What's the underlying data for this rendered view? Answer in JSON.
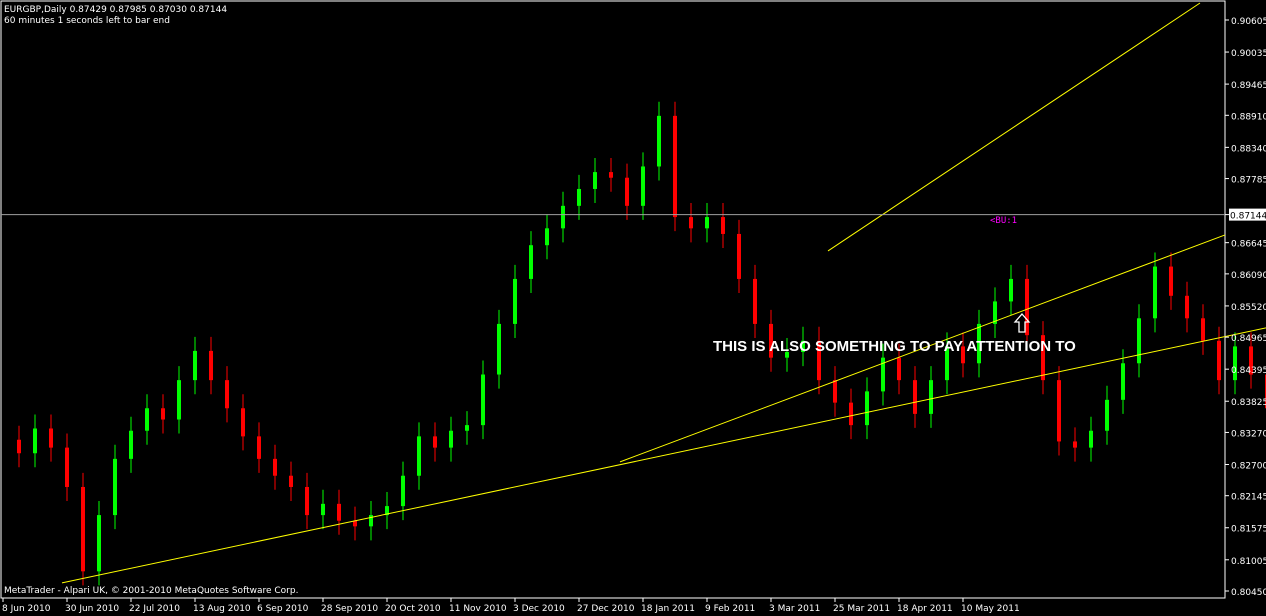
{
  "header": {
    "symbol_line": "EURGBP,Daily  0.87429 0.87985 0.87030 0.87144",
    "timer_line": "60 minutes 1 seconds left to bar end"
  },
  "footer": "MetaTrader - Alpari UK, © 2001-2010 MetaQuotes Software Corp.",
  "annotation": "THIS IS ALSO SOMETHING TO PAY ATTENTION TO",
  "object_label": "<BU:1",
  "current_price_label": "0.87144",
  "colors": {
    "background": "#000000",
    "bull": "#00ff00",
    "bear": "#ff0000",
    "trendline": "#ffff00",
    "label": "#ff00ff",
    "grid": "#ffffff"
  },
  "chart_data": {
    "type": "candlestick",
    "title": "EURGBP,Daily",
    "ylim": [
      0.8045,
      0.90605
    ],
    "y_ticks": [
      "0.90605",
      "0.90035",
      "0.89465",
      "0.88910",
      "0.88340",
      "0.87785",
      "0.87144",
      "0.86645",
      "0.86090",
      "0.85520",
      "0.84965",
      "0.84395",
      "0.83825",
      "0.83270",
      "0.82700",
      "0.82145",
      "0.81575",
      "0.81005",
      "0.80450"
    ],
    "x_ticks": [
      "8 Jun 2010",
      "30 Jun 2010",
      "22 Jul 2010",
      "13 Aug 2010",
      "6 Sep 2010",
      "28 Sep 2010",
      "20 Oct 2010",
      "11 Nov 2010",
      "3 Dec 2010",
      "27 Dec 2010",
      "18 Jan 2011",
      "9 Feb 2011",
      "3 Mar 2011",
      "25 Mar 2011",
      "18 Apr 2011",
      "10 May 2011"
    ],
    "bars_per_x_tick": 16,
    "closes_by_bar": [
      [
        0,
        0.8314
      ],
      [
        4,
        0.829
      ],
      [
        8,
        0.8334
      ],
      [
        12,
        0.83
      ],
      [
        16,
        0.823
      ],
      [
        20,
        0.808
      ],
      [
        24,
        0.818
      ],
      [
        28,
        0.828
      ],
      [
        32,
        0.833
      ],
      [
        36,
        0.837
      ],
      [
        40,
        0.835
      ],
      [
        44,
        0.842
      ],
      [
        48,
        0.8472
      ],
      [
        52,
        0.842
      ],
      [
        56,
        0.837
      ],
      [
        60,
        0.832
      ],
      [
        64,
        0.828
      ],
      [
        68,
        0.825
      ],
      [
        72,
        0.823
      ],
      [
        76,
        0.818
      ],
      [
        80,
        0.82
      ],
      [
        84,
        0.817
      ],
      [
        88,
        0.816
      ],
      [
        92,
        0.818
      ],
      [
        96,
        0.8196
      ],
      [
        100,
        0.825
      ],
      [
        104,
        0.832
      ],
      [
        108,
        0.83
      ],
      [
        112,
        0.833
      ],
      [
        116,
        0.834
      ],
      [
        120,
        0.843
      ],
      [
        124,
        0.852
      ],
      [
        128,
        0.86
      ],
      [
        132,
        0.866
      ],
      [
        136,
        0.869
      ],
      [
        140,
        0.873
      ],
      [
        144,
        0.876
      ],
      [
        148,
        0.879
      ],
      [
        152,
        0.878
      ],
      [
        156,
        0.873
      ],
      [
        160,
        0.88
      ],
      [
        164,
        0.889
      ],
      [
        168,
        0.871
      ],
      [
        172,
        0.869
      ],
      [
        176,
        0.871
      ],
      [
        180,
        0.868
      ],
      [
        184,
        0.86
      ],
      [
        188,
        0.852
      ],
      [
        192,
        0.846
      ],
      [
        196,
        0.847
      ],
      [
        200,
        0.849
      ],
      [
        204,
        0.842
      ],
      [
        208,
        0.838
      ],
      [
        212,
        0.834
      ],
      [
        216,
        0.84
      ],
      [
        220,
        0.846
      ],
      [
        224,
        0.842
      ],
      [
        228,
        0.836
      ],
      [
        232,
        0.842
      ],
      [
        236,
        0.848
      ],
      [
        240,
        0.845
      ],
      [
        244,
        0.852
      ],
      [
        248,
        0.856
      ],
      [
        252,
        0.86
      ],
      [
        256,
        0.85
      ],
      [
        260,
        0.842
      ],
      [
        264,
        0.8311
      ],
      [
        268,
        0.83
      ],
      [
        272,
        0.833
      ],
      [
        276,
        0.8385
      ],
      [
        280,
        0.845
      ],
      [
        284,
        0.853
      ],
      [
        288,
        0.8622
      ],
      [
        292,
        0.857
      ],
      [
        296,
        0.853
      ],
      [
        300,
        0.849
      ],
      [
        304,
        0.842
      ],
      [
        308,
        0.848
      ],
      [
        312,
        0.843
      ],
      [
        316,
        0.837
      ],
      [
        320,
        0.839
      ],
      [
        324,
        0.842
      ],
      [
        328,
        0.846
      ],
      [
        332,
        0.849
      ],
      [
        336,
        0.854
      ],
      [
        340,
        0.858
      ],
      [
        344,
        0.862
      ],
      [
        348,
        0.866
      ],
      [
        352,
        0.8696
      ],
      [
        356,
        0.868
      ],
      [
        360,
        0.879
      ],
      [
        364,
        0.88
      ],
      [
        368,
        0.882
      ],
      [
        372,
        0.879
      ],
      [
        376,
        0.877
      ],
      [
        380,
        0.882
      ],
      [
        384,
        0.8896
      ],
      [
        388,
        0.886
      ],
      [
        392,
        0.8806
      ],
      [
        396,
        0.883
      ],
      [
        400,
        0.886
      ],
      [
        404,
        0.888
      ],
      [
        408,
        0.8914
      ],
      [
        412,
        0.8989
      ],
      [
        416,
        0.8824
      ],
      [
        420,
        0.879
      ],
      [
        424,
        0.8735
      ],
      [
        428,
        0.8714
      ]
    ],
    "trendlines": [
      {
        "from": [
          14.75,
          0.80595
        ],
        "to": [
          315.75,
          0.85129
        ]
      },
      {
        "from": [
          154.25,
          0.82746
        ],
        "to": [
          305.5,
          0.86782
        ]
      },
      {
        "from": [
          206.25,
          0.86498
        ],
        "to": [
          299.25,
          0.90907
        ]
      }
    ],
    "horizontal_line": 0.87144
  }
}
